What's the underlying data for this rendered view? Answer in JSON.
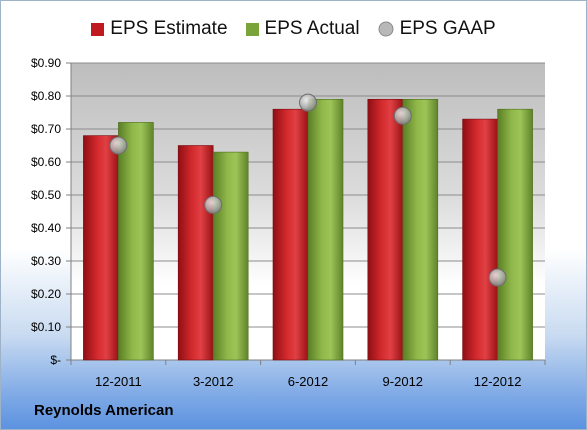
{
  "chart_data": {
    "type": "bar",
    "categories": [
      "12-2011",
      "3-2012",
      "6-2012",
      "9-2012",
      "12-2012"
    ],
    "series": [
      {
        "name": "EPS Estimate",
        "values": [
          0.68,
          0.65,
          0.76,
          0.79,
          0.73
        ],
        "color": "#c0191f",
        "kind": "bar"
      },
      {
        "name": "EPS Actual",
        "values": [
          0.72,
          0.63,
          0.79,
          0.79,
          0.76
        ],
        "color": "#7aa33a",
        "kind": "bar"
      },
      {
        "name": "EPS GAAP",
        "values": [
          0.65,
          0.47,
          0.78,
          0.74,
          0.25
        ],
        "color": "#a9a9a9",
        "kind": "marker"
      }
    ],
    "yticks": [
      "$-",
      "$0.10",
      "$0.20",
      "$0.30",
      "$0.40",
      "$0.50",
      "$0.60",
      "$0.70",
      "$0.80",
      "$0.90"
    ],
    "ylim": [
      0,
      0.9
    ],
    "grid": true,
    "legend_position": "top"
  },
  "company": "Reynolds American"
}
